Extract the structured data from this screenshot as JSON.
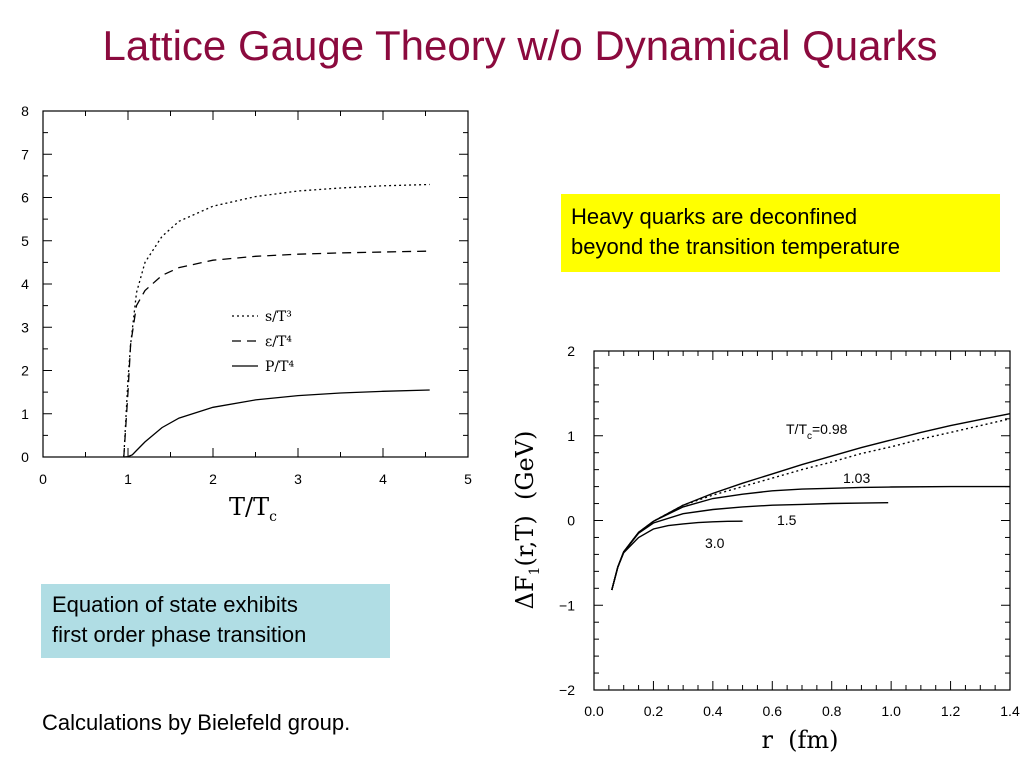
{
  "slide": {
    "title": "Lattice Gauge Theory w/o Dynamical Quarks",
    "callout_deconfined": [
      "Heavy quarks are deconfined",
      "beyond the transition temperature"
    ],
    "callout_eos": [
      "Equation of state exhibits",
      "first order phase transition"
    ],
    "credit": "Calculations by Bielefeld group."
  },
  "chart_data": [
    {
      "type": "line",
      "xlabel_main": "T/T",
      "xlabel_sub": "c",
      "xlim": [
        0,
        5
      ],
      "ylim": [
        0,
        8
      ],
      "xticks": [
        "0",
        "1",
        "2",
        "3",
        "4",
        "5"
      ],
      "yticks": [
        "0",
        "1",
        "2",
        "3",
        "4",
        "5",
        "6",
        "7",
        "8"
      ],
      "legend_position": "center-right",
      "series": [
        {
          "name": "s/T³",
          "style": "dotted",
          "x": [
            0.95,
            1.0,
            1.03,
            1.1,
            1.2,
            1.4,
            1.6,
            2.0,
            2.5,
            3.0,
            3.5,
            4.0,
            4.55
          ],
          "y": [
            0,
            1.8,
            2.6,
            3.8,
            4.5,
            5.1,
            5.45,
            5.8,
            6.02,
            6.15,
            6.22,
            6.27,
            6.3
          ]
        },
        {
          "name": "ε/T⁴",
          "style": "dashed",
          "x": [
            0.95,
            1.0,
            1.03,
            1.1,
            1.2,
            1.4,
            1.6,
            2.0,
            2.5,
            3.0,
            3.5,
            4.0,
            4.55
          ],
          "y": [
            0,
            1.5,
            2.6,
            3.5,
            3.85,
            4.2,
            4.38,
            4.55,
            4.64,
            4.69,
            4.72,
            4.74,
            4.76
          ]
        },
        {
          "name": "P/T⁴",
          "style": "solid",
          "x": [
            0.95,
            1.0,
            1.05,
            1.1,
            1.2,
            1.4,
            1.6,
            2.0,
            2.5,
            3.0,
            3.5,
            4.0,
            4.55
          ],
          "y": [
            0,
            0.01,
            0.05,
            0.15,
            0.35,
            0.68,
            0.9,
            1.15,
            1.32,
            1.42,
            1.48,
            1.52,
            1.55
          ]
        }
      ]
    },
    {
      "type": "line",
      "xlabel": "r  (fm)",
      "ylabel_main": "ΔF",
      "ylabel_sub": "1",
      "ylabel_rest": "(r,T)  (GeV)",
      "xlim": [
        0,
        1.4
      ],
      "ylim": [
        -2,
        2
      ],
      "xticks": [
        "0.0",
        "0.2",
        "0.4",
        "0.6",
        "0.8",
        "1.0",
        "1.2",
        "1.4"
      ],
      "yticks": [
        "−2",
        "−1",
        "0",
        "1",
        "2"
      ],
      "series": [
        {
          "label_main": "T/T",
          "label_sub": "c",
          "label_rest": "=0.98",
          "style": "solid",
          "x": [
            0.06,
            0.08,
            0.1,
            0.15,
            0.2,
            0.3,
            0.4,
            0.5,
            0.6,
            0.7,
            0.8,
            0.9,
            1.0,
            1.1,
            1.2,
            1.3,
            1.4
          ],
          "y": [
            -0.82,
            -0.55,
            -0.37,
            -0.14,
            -0.01,
            0.18,
            0.32,
            0.44,
            0.55,
            0.66,
            0.76,
            0.86,
            0.95,
            1.04,
            1.12,
            1.19,
            1.26
          ]
        },
        {
          "label_main": "",
          "label_sub": "",
          "label_rest": "",
          "style": "dotted",
          "x": [
            0.06,
            0.08,
            0.1,
            0.15,
            0.2,
            0.3,
            0.4,
            0.5,
            0.6,
            0.7,
            0.8,
            0.9,
            1.0,
            1.1,
            1.2,
            1.3,
            1.4
          ],
          "y": [
            -0.82,
            -0.55,
            -0.37,
            -0.14,
            -0.01,
            0.18,
            0.3,
            0.4,
            0.5,
            0.6,
            0.69,
            0.79,
            0.87,
            0.96,
            1.04,
            1.12,
            1.2
          ]
        },
        {
          "label_main": "1.03",
          "label_sub": "",
          "label_rest": "",
          "style": "solid",
          "x": [
            0.06,
            0.08,
            0.1,
            0.15,
            0.2,
            0.3,
            0.4,
            0.5,
            0.6,
            0.7,
            0.8,
            0.9,
            1.0,
            1.2,
            1.4
          ],
          "y": [
            -0.82,
            -0.55,
            -0.37,
            -0.14,
            -0.01,
            0.16,
            0.26,
            0.31,
            0.35,
            0.37,
            0.38,
            0.39,
            0.395,
            0.4,
            0.4
          ]
        },
        {
          "label_main": "1.5",
          "label_sub": "",
          "label_rest": "",
          "style": "solid",
          "x": [
            0.06,
            0.08,
            0.1,
            0.15,
            0.2,
            0.3,
            0.4,
            0.5,
            0.6,
            0.7,
            0.8,
            0.9,
            0.99
          ],
          "y": [
            -0.82,
            -0.55,
            -0.37,
            -0.15,
            -0.03,
            0.08,
            0.13,
            0.16,
            0.18,
            0.19,
            0.2,
            0.205,
            0.21
          ]
        },
        {
          "label_main": "3.0",
          "label_sub": "",
          "label_rest": "",
          "style": "solid",
          "x": [
            0.06,
            0.08,
            0.1,
            0.15,
            0.2,
            0.25,
            0.3,
            0.35,
            0.4,
            0.45,
            0.5
          ],
          "y": [
            -0.82,
            -0.55,
            -0.38,
            -0.2,
            -0.1,
            -0.06,
            -0.04,
            -0.025,
            -0.015,
            -0.01,
            -0.008
          ]
        }
      ]
    }
  ]
}
